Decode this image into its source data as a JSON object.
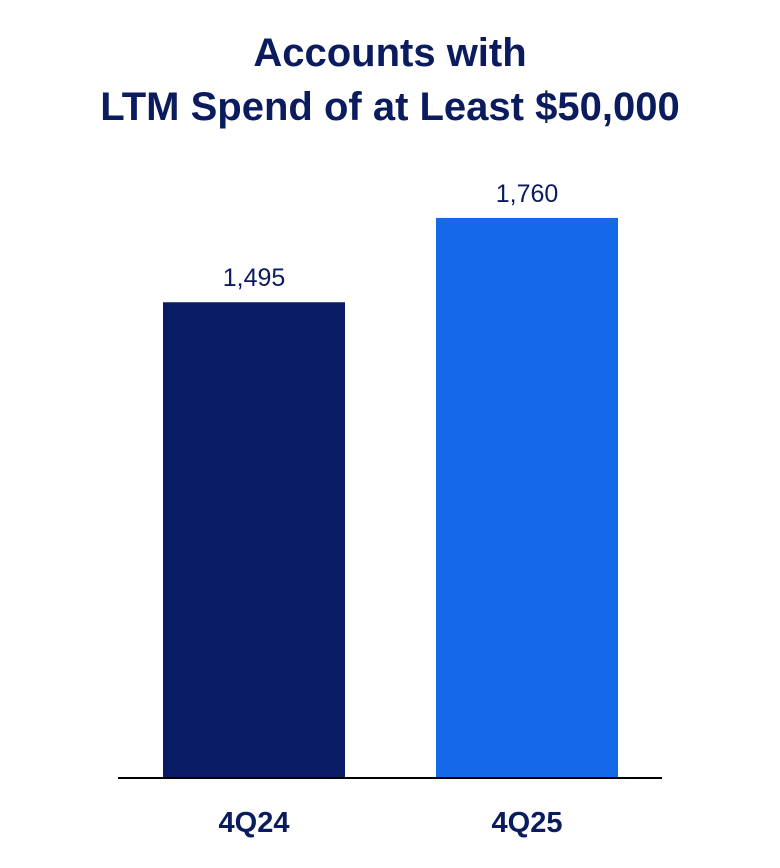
{
  "chart_data": {
    "type": "bar",
    "title_lines": [
      "Accounts with",
      "LTM Spend of at Least $50,000"
    ],
    "categories": [
      "4Q24",
      "4Q25"
    ],
    "values": [
      1495,
      1760
    ],
    "data_labels": [
      "1,495",
      "1,760"
    ],
    "colors": [
      "#0a1b66",
      "#1469eb"
    ],
    "xlabel": "",
    "ylabel": "",
    "ylim": [
      0,
      1810
    ],
    "grid": false,
    "legend": "none"
  }
}
